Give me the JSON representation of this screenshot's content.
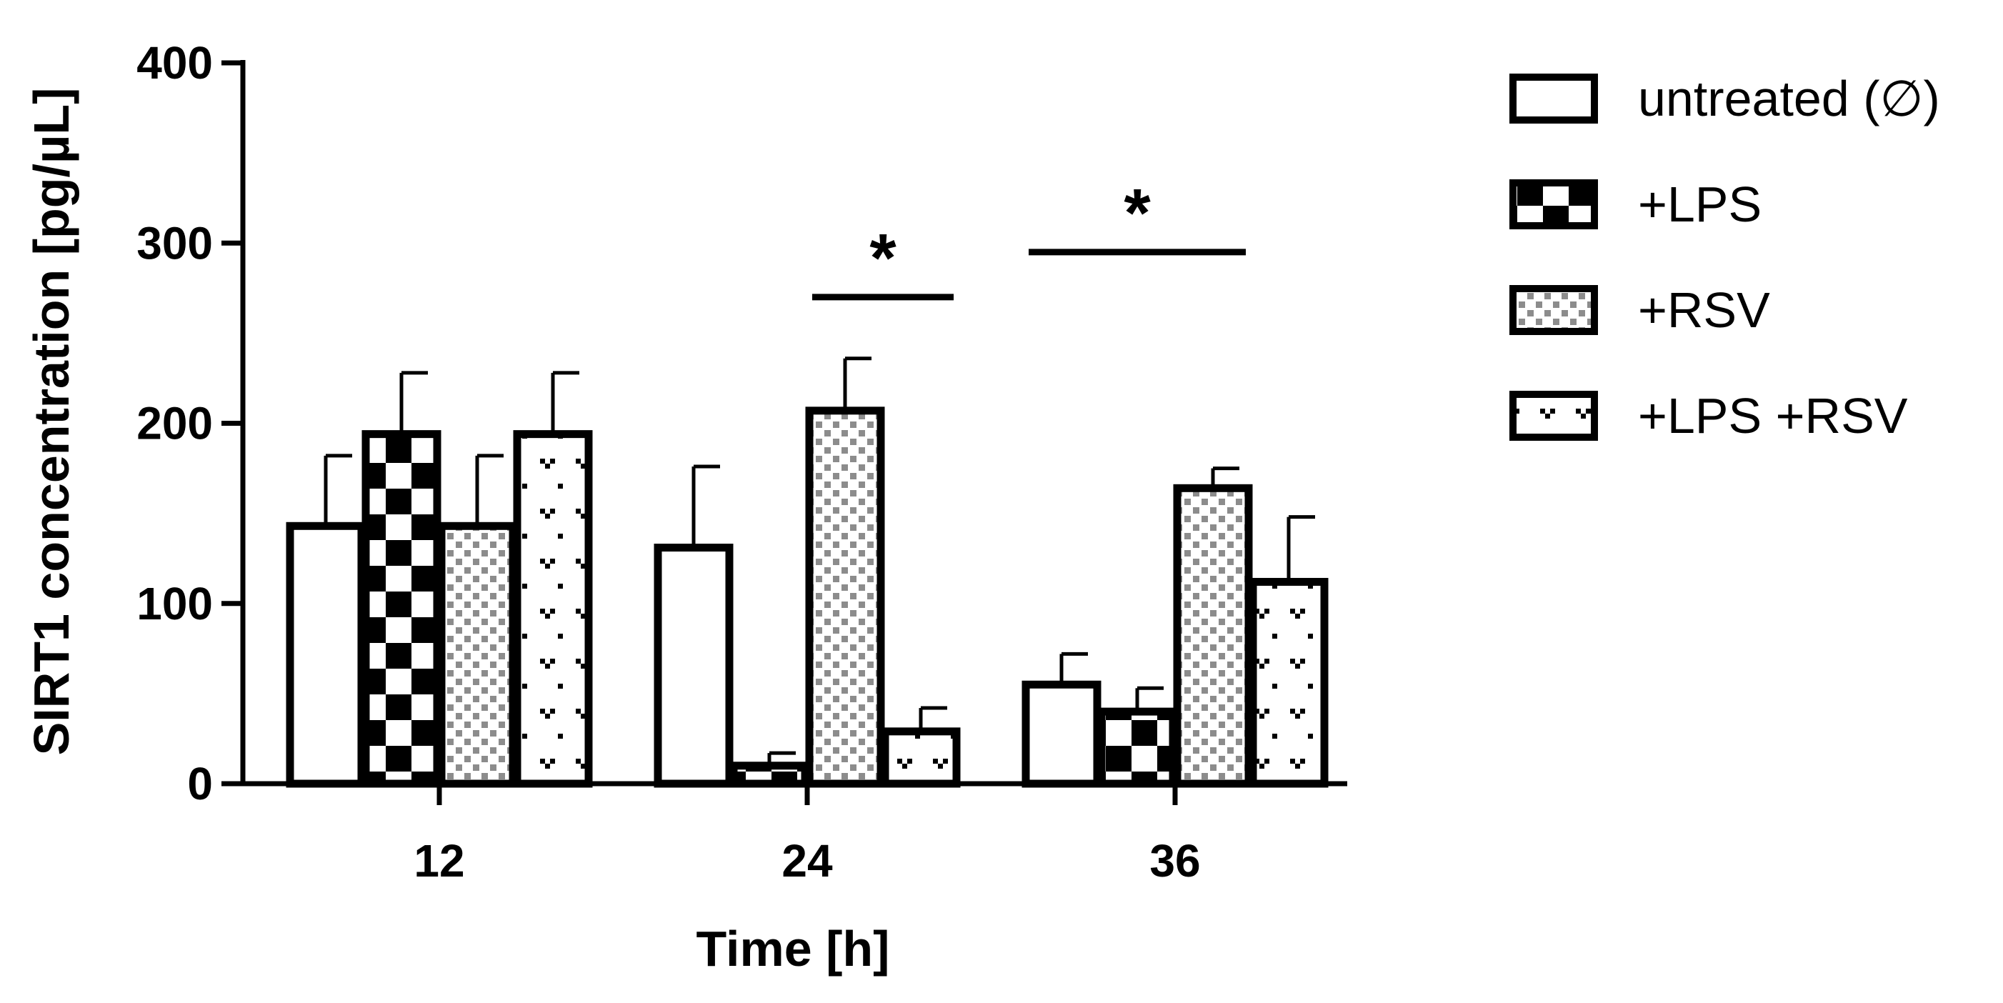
{
  "chart_data": {
    "type": "bar",
    "title": "",
    "xlabel": "Time [h]",
    "ylabel": "SIRT1 concentration [pg/µL]",
    "categories": [
      "12",
      "24",
      "36"
    ],
    "ylim": [
      0,
      400
    ],
    "yticks": [
      "0",
      "100",
      "200",
      "300",
      "400"
    ],
    "series": [
      {
        "name": "untreated (∅)",
        "pattern": "plain",
        "values": [
          143,
          131,
          55
        ],
        "errors": [
          39,
          45,
          17
        ]
      },
      {
        "name": "+LPS",
        "pattern": "checker",
        "values": [
          194,
          10,
          40
        ],
        "errors": [
          34,
          7,
          13
        ]
      },
      {
        "name": "+RSV",
        "pattern": "dots",
        "values": [
          143,
          207,
          164
        ],
        "errors": [
          39,
          29,
          11
        ]
      },
      {
        "name": "+LPS +RSV",
        "pattern": "ticks",
        "values": [
          194,
          29,
          112
        ],
        "errors": [
          34,
          13,
          36
        ]
      }
    ],
    "significance": [
      {
        "category": "24",
        "from_series": 2,
        "to_series": 3,
        "label": "*",
        "level": 270
      },
      {
        "category": "36",
        "from_series": 0,
        "to_series": 2,
        "label": "*",
        "level": 295
      }
    ],
    "legend_position": "top-right",
    "grid": false,
    "colors": {
      "bar_fill": "#ffffff",
      "stroke": "#000000",
      "dots": "#8c8c8c"
    }
  }
}
